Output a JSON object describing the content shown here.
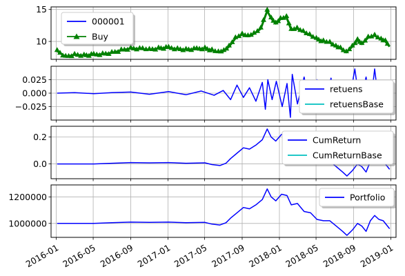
{
  "chart_data": [
    {
      "type": "line",
      "x_ticks": [
        "2016-01",
        "2016-05",
        "2016-09",
        "2017-01",
        "2017-05",
        "2017-09",
        "2018-01",
        "2018-05",
        "2018-09",
        "2019-01"
      ],
      "y_ticks": [
        "10",
        "15"
      ],
      "y_tick_values": [
        10,
        15
      ],
      "ylim": [
        7.2,
        15.4
      ],
      "grid": true,
      "legend": "upper left",
      "legend_shadow": true,
      "series": [
        {
          "name": "000001",
          "color": "#0000ff",
          "style": "line",
          "x": [
            "2016-01-04",
            "2016-02-01",
            "2016-03-01",
            "2016-04-01",
            "2016-05-03",
            "2016-06-01",
            "2016-07-01",
            "2016-08-01",
            "2016-09-01",
            "2016-10-10",
            "2016-11-01",
            "2016-12-01",
            "2017-01-03",
            "2017-02-01",
            "2017-03-01",
            "2017-04-05",
            "2017-05-02",
            "2017-05-25",
            "2017-06-15",
            "2017-07-03",
            "2017-07-20",
            "2017-08-10",
            "2017-09-01",
            "2017-09-20",
            "2017-10-10",
            "2017-11-01",
            "2017-11-10",
            "2017-11-22",
            "2017-12-05",
            "2017-12-20",
            "2018-01-05",
            "2018-01-24",
            "2018-02-09",
            "2018-02-28",
            "2018-03-20",
            "2018-04-10",
            "2018-05-02",
            "2018-05-25",
            "2018-06-15",
            "2018-07-05",
            "2018-07-20",
            "2018-08-08",
            "2018-08-28",
            "2018-09-14",
            "2018-09-28",
            "2018-10-19",
            "2018-11-09",
            "2018-11-30",
            "2018-12-14",
            "2018-12-28"
          ],
          "values": [
            8.5,
            7.6,
            7.9,
            7.8,
            7.9,
            8.0,
            8.2,
            8.6,
            8.9,
            8.8,
            8.7,
            8.9,
            9.0,
            8.8,
            8.7,
            8.8,
            8.9,
            8.6,
            8.3,
            8.5,
            9.2,
            10.5,
            11.1,
            10.8,
            11.2,
            12.0,
            13.2,
            14.8,
            13.6,
            12.8,
            13.5,
            13.8,
            11.8,
            12.0,
            11.5,
            11.0,
            10.4,
            10.0,
            9.8,
            9.2,
            8.9,
            8.3,
            9.2,
            10.2,
            9.6,
            10.6,
            10.9,
            10.3,
            10.0,
            9.2
          ]
        },
        {
          "name": "Buy",
          "color": "#008000",
          "style": "line-triangle",
          "x": [
            "2016-01-04",
            "2016-02-01",
            "2016-03-01",
            "2016-04-01",
            "2016-05-03",
            "2016-06-01",
            "2016-07-01",
            "2016-08-01",
            "2016-09-01",
            "2016-10-10",
            "2016-11-01",
            "2016-12-01",
            "2017-01-03",
            "2017-02-01",
            "2017-03-01",
            "2017-04-05",
            "2017-05-02",
            "2017-05-25",
            "2017-06-15",
            "2017-07-03",
            "2017-07-20",
            "2017-08-10",
            "2017-09-01",
            "2017-09-20",
            "2017-10-10",
            "2017-11-01",
            "2017-11-10",
            "2017-11-22",
            "2017-12-05",
            "2017-12-20",
            "2018-01-05",
            "2018-01-24",
            "2018-02-09",
            "2018-02-28",
            "2018-03-20",
            "2018-04-10",
            "2018-05-02",
            "2018-05-25",
            "2018-06-15",
            "2018-07-05",
            "2018-07-20",
            "2018-08-08",
            "2018-08-28",
            "2018-09-14",
            "2018-09-28",
            "2018-10-19",
            "2018-11-09",
            "2018-11-30",
            "2018-12-14",
            "2018-12-28"
          ],
          "values": [
            8.5,
            7.6,
            7.9,
            7.8,
            7.9,
            8.0,
            8.2,
            8.6,
            8.9,
            8.8,
            8.7,
            8.9,
            9.0,
            8.8,
            8.7,
            8.8,
            8.9,
            8.6,
            8.3,
            8.5,
            9.2,
            10.5,
            11.1,
            10.8,
            11.2,
            12.0,
            13.2,
            14.8,
            13.6,
            12.8,
            13.5,
            13.8,
            11.8,
            12.0,
            11.5,
            11.0,
            10.4,
            10.0,
            9.8,
            9.2,
            8.9,
            8.3,
            9.2,
            10.2,
            9.6,
            10.6,
            10.9,
            10.3,
            10.0,
            9.2
          ]
        }
      ]
    },
    {
      "type": "line",
      "x_ticks": [
        "2016-01",
        "2016-05",
        "2016-09",
        "2017-01",
        "2017-05",
        "2017-09",
        "2018-01",
        "2018-05",
        "2018-09",
        "2019-01"
      ],
      "y_ticks": [
        "0.025",
        "0.000",
        "−0.025"
      ],
      "y_tick_values": [
        0.025,
        0.0,
        -0.025
      ],
      "ylim": [
        -0.05,
        0.05
      ],
      "grid": true,
      "legend": "lower right",
      "legend_shadow": true,
      "series": [
        {
          "name": "retuens",
          "color": "#0000ff",
          "style": "line",
          "x": [
            "2016-01-04",
            "2016-03-01",
            "2016-05-03",
            "2016-07-01",
            "2016-09-01",
            "2016-11-01",
            "2017-01-03",
            "2017-03-01",
            "2017-04-20",
            "2017-06-01",
            "2017-07-01",
            "2017-07-25",
            "2017-08-15",
            "2017-09-05",
            "2017-09-25",
            "2017-10-16",
            "2017-11-06",
            "2017-11-16",
            "2017-11-24",
            "2017-12-08",
            "2017-12-22",
            "2018-01-10",
            "2018-01-26",
            "2018-02-06",
            "2018-02-12",
            "2018-03-01",
            "2018-03-23",
            "2018-04-13",
            "2018-05-04",
            "2018-05-25",
            "2018-06-19",
            "2018-07-06",
            "2018-07-27",
            "2018-08-15",
            "2018-09-05",
            "2018-09-21",
            "2018-10-12",
            "2018-10-26",
            "2018-11-09",
            "2018-11-23",
            "2018-12-07",
            "2018-12-21",
            "2018-12-28"
          ],
          "values": [
            0.0,
            0.001,
            -0.001,
            0.001,
            0.002,
            -0.002,
            0.003,
            -0.003,
            0.004,
            -0.004,
            0.005,
            -0.012,
            0.015,
            -0.008,
            0.01,
            -0.015,
            0.02,
            -0.03,
            0.025,
            -0.012,
            0.022,
            -0.025,
            0.018,
            -0.045,
            0.035,
            -0.02,
            0.03,
            -0.035,
            0.025,
            -0.02,
            0.028,
            -0.03,
            0.02,
            -0.025,
            0.045,
            -0.02,
            0.03,
            -0.025,
            0.045,
            -0.02,
            0.01,
            -0.005,
            0.0
          ]
        },
        {
          "name": "retuensBase",
          "color": "#00bfbf",
          "style": "line",
          "x": [],
          "values": []
        }
      ]
    },
    {
      "type": "line",
      "x_ticks": [
        "2016-01",
        "2016-05",
        "2016-09",
        "2017-01",
        "2017-05",
        "2017-09",
        "2018-01",
        "2018-05",
        "2018-09",
        "2019-01"
      ],
      "y_ticks": [
        "0.2",
        "0.0"
      ],
      "y_tick_values": [
        0.2,
        0.0
      ],
      "ylim": [
        -0.11,
        0.28
      ],
      "grid": true,
      "legend": "right",
      "legend_shadow": true,
      "series": [
        {
          "name": "CumReturn",
          "color": "#0000ff",
          "style": "line",
          "x": [
            "2016-01-04",
            "2016-03-01",
            "2016-05-03",
            "2016-07-01",
            "2016-09-01",
            "2016-11-01",
            "2017-01-03",
            "2017-03-01",
            "2017-05-02",
            "2017-05-25",
            "2017-06-20",
            "2017-07-10",
            "2017-07-25",
            "2017-08-15",
            "2017-09-05",
            "2017-09-25",
            "2017-10-16",
            "2017-11-06",
            "2017-11-22",
            "2017-12-05",
            "2017-12-20",
            "2018-01-08",
            "2018-01-26",
            "2018-02-09",
            "2018-03-01",
            "2018-03-23",
            "2018-04-13",
            "2018-05-04",
            "2018-05-25",
            "2018-06-15",
            "2018-07-06",
            "2018-07-27",
            "2018-08-10",
            "2018-08-28",
            "2018-09-14",
            "2018-09-28",
            "2018-10-12",
            "2018-10-26",
            "2018-11-09",
            "2018-11-23",
            "2018-12-07",
            "2018-12-21",
            "2018-12-28"
          ],
          "values": [
            0.0,
            0.0,
            0.0,
            0.005,
            0.01,
            0.008,
            0.01,
            0.005,
            0.008,
            -0.005,
            -0.012,
            0.005,
            0.04,
            0.08,
            0.12,
            0.11,
            0.14,
            0.18,
            0.26,
            0.2,
            0.17,
            0.22,
            0.21,
            0.14,
            0.15,
            0.09,
            0.08,
            0.03,
            0.02,
            0.02,
            -0.02,
            -0.06,
            -0.09,
            -0.05,
            0.0,
            -0.02,
            -0.06,
            0.02,
            0.06,
            0.03,
            0.02,
            -0.02,
            -0.04
          ]
        },
        {
          "name": "CumReturnBase",
          "color": "#00bfbf",
          "style": "line",
          "x": [],
          "values": []
        }
      ]
    },
    {
      "type": "line",
      "x_ticks": [
        "2016-01",
        "2016-05",
        "2016-09",
        "2017-01",
        "2017-05",
        "2017-09",
        "2018-01",
        "2018-05",
        "2018-09",
        "2019-01"
      ],
      "y_ticks": [
        "1200000",
        "1000000"
      ],
      "y_tick_values": [
        1200000,
        1000000
      ],
      "ylim": [
        895000,
        1290000
      ],
      "grid": true,
      "legend": "upper right",
      "legend_shadow": true,
      "series": [
        {
          "name": "Portfolio",
          "color": "#0000ff",
          "style": "line",
          "x": [
            "2016-01-04",
            "2016-03-01",
            "2016-05-03",
            "2016-07-01",
            "2016-09-01",
            "2016-11-01",
            "2017-01-03",
            "2017-03-01",
            "2017-05-02",
            "2017-05-25",
            "2017-06-20",
            "2017-07-10",
            "2017-07-25",
            "2017-08-15",
            "2017-09-05",
            "2017-09-25",
            "2017-10-16",
            "2017-11-06",
            "2017-11-22",
            "2017-12-05",
            "2017-12-20",
            "2018-01-08",
            "2018-01-26",
            "2018-02-09",
            "2018-03-01",
            "2018-03-23",
            "2018-04-13",
            "2018-05-04",
            "2018-05-25",
            "2018-06-15",
            "2018-07-06",
            "2018-07-27",
            "2018-08-10",
            "2018-08-28",
            "2018-09-14",
            "2018-09-28",
            "2018-10-12",
            "2018-10-26",
            "2018-11-09",
            "2018-11-23",
            "2018-12-07",
            "2018-12-21",
            "2018-12-28"
          ],
          "values": [
            1000000,
            1000000,
            1000000,
            1005000,
            1010000,
            1008000,
            1010000,
            1005000,
            1008000,
            995000,
            988000,
            1005000,
            1040000,
            1080000,
            1120000,
            1110000,
            1140000,
            1180000,
            1260000,
            1200000,
            1170000,
            1220000,
            1210000,
            1140000,
            1150000,
            1090000,
            1080000,
            1030000,
            1020000,
            1020000,
            980000,
            940000,
            910000,
            950000,
            1000000,
            980000,
            940000,
            1020000,
            1060000,
            1030000,
            1020000,
            980000,
            960000
          ]
        }
      ]
    }
  ]
}
